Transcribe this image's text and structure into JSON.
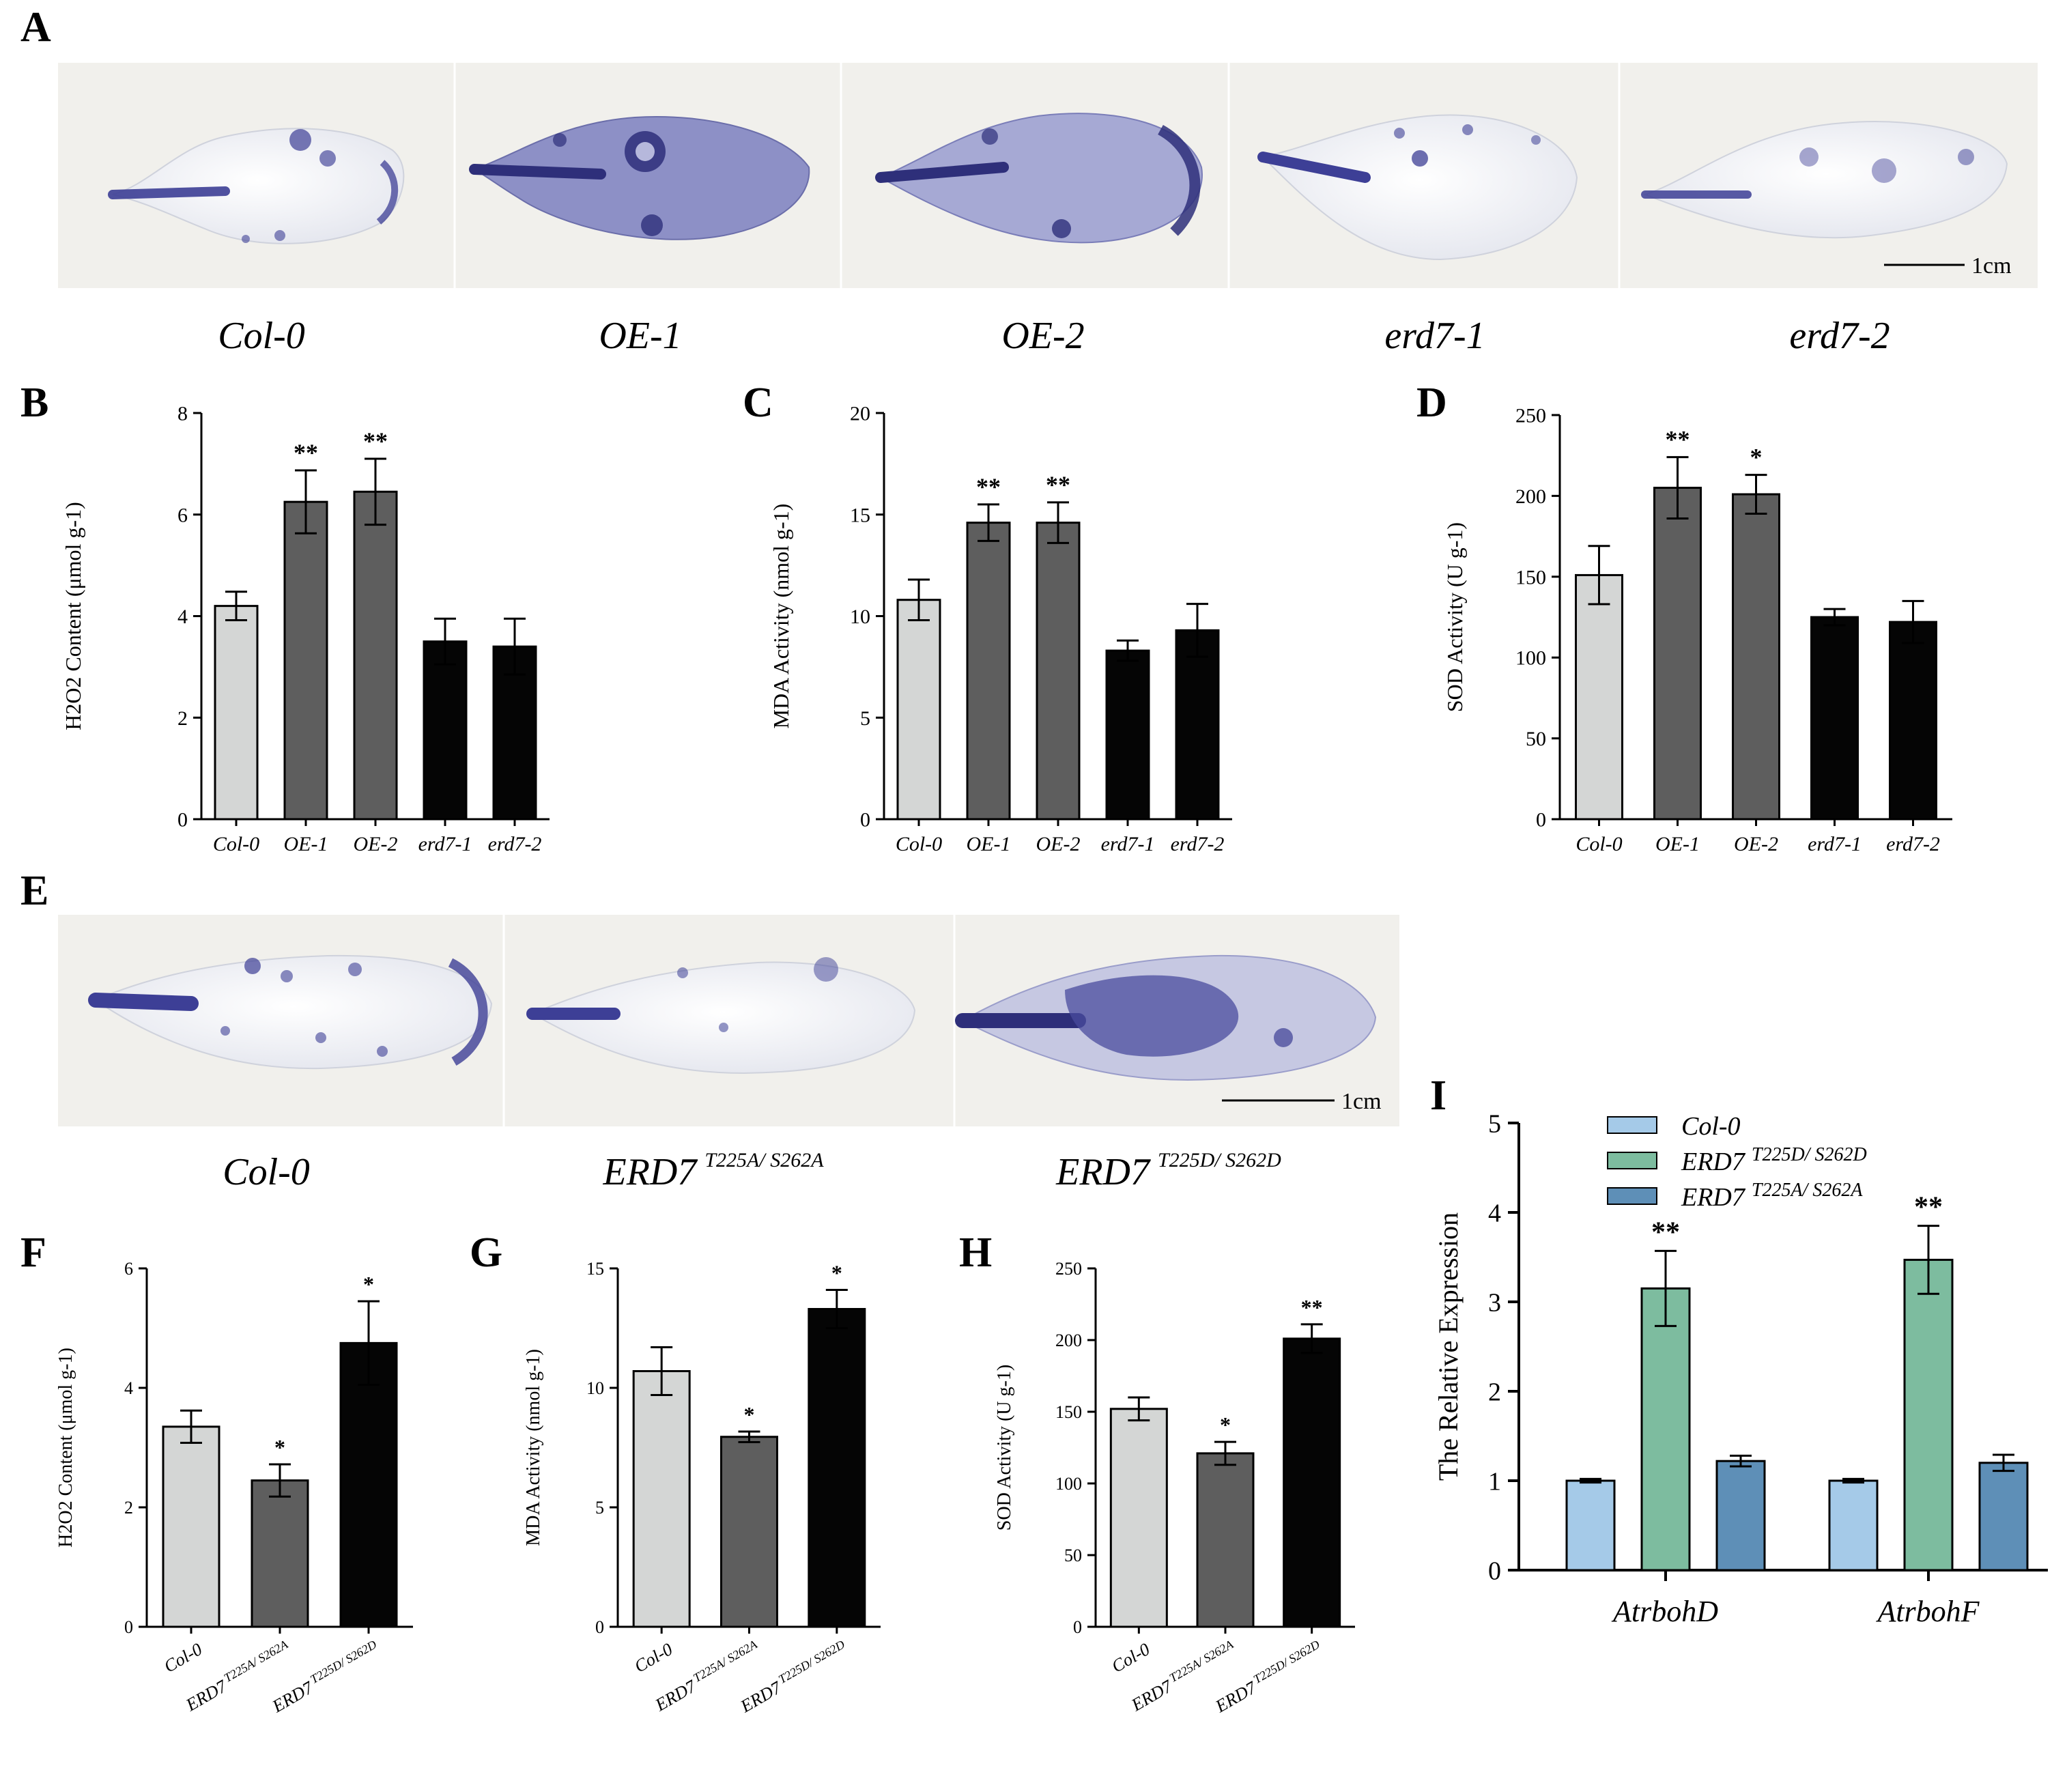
{
  "figure": {
    "panel_letters": [
      "A",
      "B",
      "C",
      "D",
      "E",
      "F",
      "G",
      "H",
      "I"
    ],
    "panel_a": {
      "labels": [
        "Col-0",
        "OE-1",
        "OE-2",
        "erd7-1",
        "erd7-2"
      ],
      "scale_bar": "1cm"
    },
    "panel_e": {
      "labels": [
        {
          "base": "Col-0",
          "sup": ""
        },
        {
          "base": "ERD7",
          "sup": "T225A/ S262A"
        },
        {
          "base": "ERD7",
          "sup": "T225D/ S262D"
        }
      ],
      "scale_bar": "1cm"
    },
    "colors": {
      "light_gray": "#d4d6d5",
      "dark_gray": "#5e5e5e",
      "black": "#050505",
      "light_blue": "#a5cae8",
      "green": "#7dbc9f",
      "steel_blue": "#5e8fb7",
      "leaf_bg": "#f1f0ec",
      "stain": "#3d3f96"
    }
  },
  "chart_data": [
    {
      "id": "B",
      "type": "bar",
      "title": "",
      "xlabel": "",
      "ylabel": "H2O2 Content (μmol g-1)",
      "categories": [
        "Col-0",
        "OE-1",
        "OE-2",
        "erd7-1",
        "erd7-2"
      ],
      "values": [
        4.2,
        6.25,
        6.45,
        3.5,
        3.4
      ],
      "errors": [
        0.28,
        0.62,
        0.65,
        0.45,
        0.55
      ],
      "significance": [
        "",
        "**",
        "**",
        "",
        ""
      ],
      "ylim": [
        0,
        8
      ],
      "yticks": [
        0,
        2,
        4,
        6,
        8
      ],
      "bar_colors": [
        "#d4d6d5",
        "#5e5e5e",
        "#5e5e5e",
        "#050505",
        "#050505"
      ]
    },
    {
      "id": "C",
      "type": "bar",
      "title": "",
      "xlabel": "",
      "ylabel": "MDA Activity (nmol g-1)",
      "categories": [
        "Col-0",
        "OE-1",
        "OE-2",
        "erd7-1",
        "erd7-2"
      ],
      "values": [
        10.8,
        14.6,
        14.6,
        8.3,
        9.3
      ],
      "errors": [
        1.0,
        0.9,
        1.0,
        0.5,
        1.3
      ],
      "significance": [
        "",
        "**",
        "**",
        "",
        ""
      ],
      "ylim": [
        0,
        20
      ],
      "yticks": [
        0,
        5,
        10,
        15,
        20
      ],
      "bar_colors": [
        "#d4d6d5",
        "#5e5e5e",
        "#5e5e5e",
        "#050505",
        "#050505"
      ]
    },
    {
      "id": "D",
      "type": "bar",
      "title": "",
      "xlabel": "",
      "ylabel": "SOD Activity (U g-1)",
      "categories": [
        "Col-0",
        "OE-1",
        "OE-2",
        "erd7-1",
        "erd7-2"
      ],
      "values": [
        151,
        205,
        201,
        125,
        122
      ],
      "errors": [
        18,
        19,
        12,
        5,
        13
      ],
      "significance": [
        "",
        "**",
        "*",
        "",
        ""
      ],
      "ylim": [
        0,
        250
      ],
      "yticks": [
        0,
        50,
        100,
        150,
        200,
        250
      ],
      "bar_colors": [
        "#d4d6d5",
        "#5e5e5e",
        "#5e5e5e",
        "#050505",
        "#050505"
      ]
    },
    {
      "id": "F",
      "type": "bar",
      "title": "",
      "xlabel": "",
      "ylabel": "H2O2 Content (μmol g-1)",
      "categories": [
        {
          "base": "Col-0",
          "sup": ""
        },
        {
          "base": "ERD7",
          "sup": "T225A/ S262A"
        },
        {
          "base": "ERD7",
          "sup": "T225D/ S262D"
        }
      ],
      "values": [
        3.35,
        2.45,
        4.75
      ],
      "errors": [
        0.27,
        0.27,
        0.7
      ],
      "significance": [
        "",
        "*",
        "*"
      ],
      "ylim": [
        0,
        6
      ],
      "yticks": [
        0,
        2,
        4,
        6
      ],
      "bar_colors": [
        "#d4d6d5",
        "#5e5e5e",
        "#050505"
      ]
    },
    {
      "id": "G",
      "type": "bar",
      "title": "",
      "xlabel": "",
      "ylabel": "MDA Activity (nmol g-1)",
      "categories": [
        {
          "base": "Col-0",
          "sup": ""
        },
        {
          "base": "ERD7",
          "sup": "T225A/ S262A"
        },
        {
          "base": "ERD7",
          "sup": "T225D/ S262D"
        }
      ],
      "values": [
        10.7,
        7.95,
        13.3
      ],
      "errors": [
        1.0,
        0.22,
        0.8
      ],
      "significance": [
        "",
        "*",
        "*"
      ],
      "ylim": [
        0,
        15
      ],
      "yticks": [
        0,
        5,
        10,
        15
      ],
      "bar_colors": [
        "#d4d6d5",
        "#5e5e5e",
        "#050505"
      ]
    },
    {
      "id": "H",
      "type": "bar",
      "title": "",
      "xlabel": "",
      "ylabel": "SOD Activity (U g-1)",
      "categories": [
        {
          "base": "Col-0",
          "sup": ""
        },
        {
          "base": "ERD7",
          "sup": "T225A/ S262A"
        },
        {
          "base": "ERD7",
          "sup": "T225D/ S262D"
        }
      ],
      "values": [
        152,
        121,
        201
      ],
      "errors": [
        8,
        8,
        10
      ],
      "significance": [
        "",
        "*",
        "**"
      ],
      "ylim": [
        0,
        250
      ],
      "yticks": [
        0,
        50,
        100,
        150,
        200,
        250
      ],
      "bar_colors": [
        "#d4d6d5",
        "#5e5e5e",
        "#050505"
      ]
    },
    {
      "id": "I",
      "type": "bar",
      "title": "",
      "xlabel": "",
      "ylabel": "The Relative Expression",
      "categories": [
        "AtrbohD",
        "AtrbohF"
      ],
      "ylim": [
        0,
        5
      ],
      "yticks": [
        0,
        1,
        2,
        3,
        4,
        5
      ],
      "legend_position": "top-left",
      "legend": [
        {
          "base": "Col-0",
          "sup": "",
          "color": "#a5cae8"
        },
        {
          "base": "ERD7",
          "sup": "T225D/ S262D",
          "color": "#7dbc9f"
        },
        {
          "base": "ERD7",
          "sup": "T225A/ S262A",
          "color": "#5e8fb7"
        }
      ],
      "series": [
        {
          "name": "Col-0",
          "values": [
            1.0,
            1.0
          ],
          "errors": [
            0.02,
            0.02
          ],
          "significance": [
            "",
            ""
          ]
        },
        {
          "name": "ERD7 T225D/ S262D",
          "values": [
            3.15,
            3.47
          ],
          "errors": [
            0.42,
            0.38
          ],
          "significance": [
            "**",
            "**"
          ]
        },
        {
          "name": "ERD7 T225A/ S262A",
          "values": [
            1.22,
            1.2
          ],
          "errors": [
            0.06,
            0.09
          ],
          "significance": [
            "",
            ""
          ]
        }
      ]
    }
  ]
}
